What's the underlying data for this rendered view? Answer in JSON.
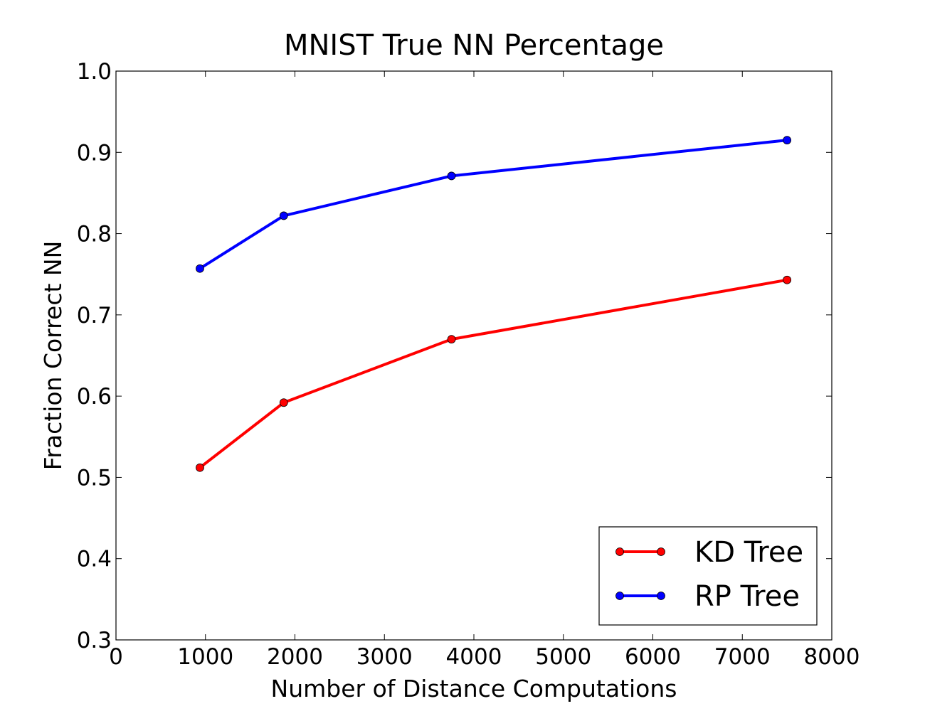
{
  "chart_data": {
    "type": "line",
    "title": "MNIST True NN Percentage",
    "xlabel": "Number of Distance Computations",
    "ylabel": "Fraction Correct NN",
    "xlim": [
      0,
      8000
    ],
    "ylim": [
      0.3,
      1.0
    ],
    "xticks": [
      0,
      1000,
      2000,
      3000,
      4000,
      5000,
      6000,
      7000,
      8000
    ],
    "xtick_labels": [
      "0",
      "1000",
      "2000",
      "3000",
      "4000",
      "5000",
      "6000",
      "7000",
      "8000"
    ],
    "yticks": [
      0.3,
      0.4,
      0.5,
      0.6,
      0.7,
      0.8,
      0.9,
      1.0
    ],
    "ytick_labels": [
      "0.3",
      "0.4",
      "0.5",
      "0.6",
      "0.7",
      "0.8",
      "0.9",
      "1.0"
    ],
    "grid": false,
    "legend_position": "bottom-right",
    "series": [
      {
        "name": "KD Tree",
        "color": "#ff0000",
        "marker": "circle",
        "x": [
          938,
          1875,
          3750,
          7500
        ],
        "y": [
          0.512,
          0.592,
          0.67,
          0.743
        ]
      },
      {
        "name": "RP Tree",
        "color": "#0000ff",
        "marker": "circle",
        "x": [
          938,
          1875,
          3750,
          7500
        ],
        "y": [
          0.757,
          0.822,
          0.871,
          0.915
        ]
      }
    ]
  }
}
